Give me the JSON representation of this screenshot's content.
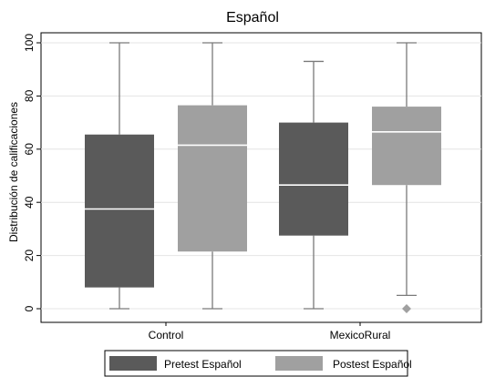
{
  "chart_data": {
    "type": "box",
    "title": "Español",
    "ylabel": "Distribución de calificaciones",
    "xlabel": "",
    "ylim": [
      0,
      100
    ],
    "yticks": [
      0,
      20,
      40,
      60,
      80,
      100
    ],
    "categories": [
      "Control",
      "MexicoRural"
    ],
    "series": [
      {
        "name": "Pretest Español",
        "color": "#5a5a5a",
        "boxes": [
          {
            "min": 0,
            "q1": 8,
            "median": 37.5,
            "q3": 65.5,
            "max": 100,
            "outliers": []
          },
          {
            "min": 0,
            "q1": 27.5,
            "median": 46.5,
            "q3": 70,
            "max": 93,
            "outliers": []
          }
        ]
      },
      {
        "name": "Postest Español",
        "color": "#a0a0a0",
        "boxes": [
          {
            "min": 0,
            "q1": 21.5,
            "median": 61.5,
            "q3": 76.5,
            "max": 100,
            "outliers": []
          },
          {
            "min": 5,
            "q1": 46.5,
            "median": 66.5,
            "q3": 76,
            "max": 100,
            "outliers": [
              0
            ]
          }
        ]
      }
    ],
    "grid": true,
    "legend_position": "bottom"
  }
}
